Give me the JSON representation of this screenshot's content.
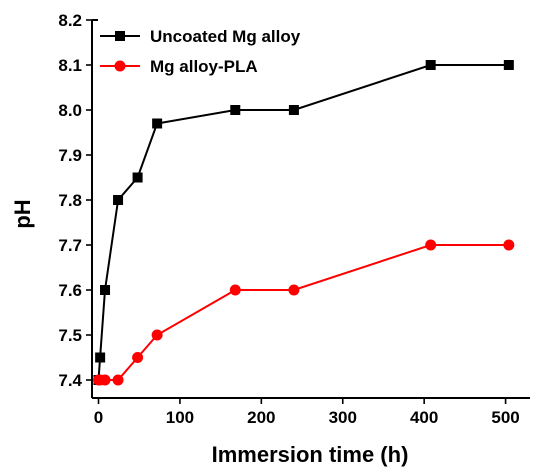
{
  "chart_data": {
    "type": "line",
    "xlabel": "Immersion time (h)",
    "ylabel": "pH",
    "xlim": [
      -8,
      530
    ],
    "ylim": [
      7.36,
      8.2
    ],
    "xticks": [
      0,
      100,
      200,
      300,
      400,
      500
    ],
    "yticks": [
      7.4,
      7.5,
      7.6,
      7.7,
      7.8,
      7.9,
      8.0,
      8.1,
      8.2
    ],
    "ytick_labels": [
      "7.4",
      "7.5",
      "7.6",
      "7.7",
      "7.8",
      "7.9",
      "8.0",
      "8.1",
      "8.2"
    ],
    "grid": false,
    "legend_position": "top-left",
    "series": [
      {
        "name": "Uncoated Mg alloy",
        "color": "#000000",
        "marker": "square",
        "x": [
          0,
          2,
          8,
          24,
          48,
          72,
          168,
          240,
          408,
          504
        ],
        "y": [
          7.4,
          7.45,
          7.6,
          7.8,
          7.85,
          7.97,
          8.0,
          8.0,
          8.1,
          8.1
        ]
      },
      {
        "name": "Mg alloy-PLA",
        "color": "#ff0000",
        "marker": "circle",
        "x": [
          0,
          2,
          8,
          24,
          48,
          72,
          168,
          240,
          408,
          504
        ],
        "y": [
          7.4,
          7.4,
          7.4,
          7.4,
          7.45,
          7.5,
          7.6,
          7.6,
          7.7,
          7.7
        ]
      }
    ]
  }
}
